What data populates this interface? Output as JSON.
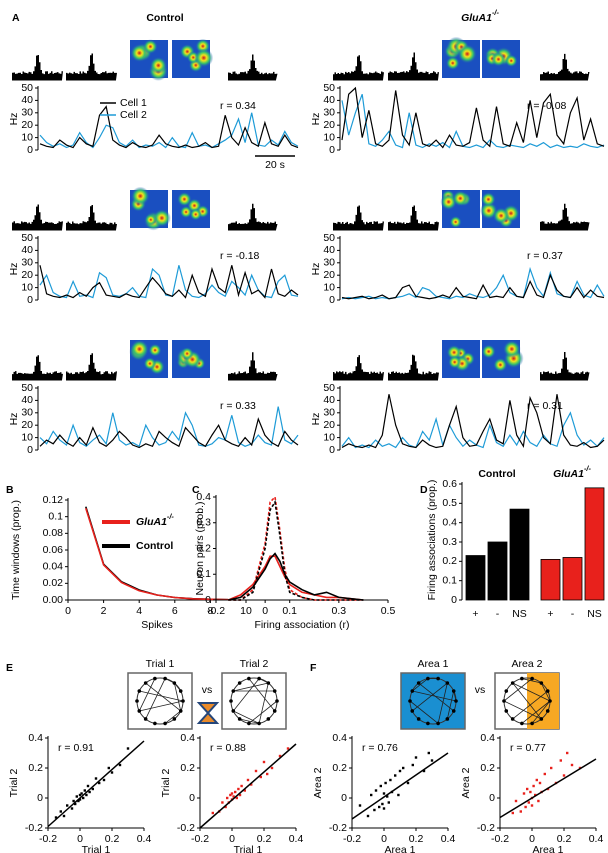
{
  "figure": {
    "panel_labels": [
      "A",
      "B",
      "C",
      "D",
      "E",
      "F"
    ],
    "column_headers": [
      {
        "text": "Control"
      },
      {
        "text": "GluA1",
        "sup": "-/-"
      }
    ],
    "comparison_e": {
      "left": "Trial 1",
      "vs": "vs",
      "right": "Trial 2"
    },
    "comparison_f": {
      "left": "Area 1",
      "vs": "vs",
      "right": "Area 2"
    }
  },
  "chart_data": [
    {
      "type": "trace",
      "ylabel": "Hz",
      "ylim": [
        0,
        50
      ],
      "yticks": [
        0,
        10,
        20,
        30,
        40,
        50
      ],
      "annotation": "r = 0.34",
      "scale_bar": "20 s",
      "series": [
        {
          "name": "Cell 1",
          "color": "#000000",
          "values": [
            5,
            3,
            2,
            8,
            4,
            2,
            10,
            5,
            3,
            28,
            35,
            8,
            4,
            2,
            6,
            3,
            2,
            4,
            12,
            5,
            3,
            2,
            4,
            2,
            3,
            6,
            2,
            3,
            28,
            10,
            4,
            18,
            6,
            3,
            22,
            5,
            3,
            12,
            4,
            2
          ]
        },
        {
          "name": "Cell 2",
          "color": "#1e9bd7",
          "values": [
            12,
            6,
            3,
            5,
            2,
            4,
            14,
            6,
            2,
            10,
            20,
            18,
            6,
            3,
            8,
            2,
            4,
            3,
            6,
            2,
            10,
            3,
            2,
            14,
            3,
            4,
            2,
            5,
            8,
            12,
            25,
            6,
            30,
            4,
            3,
            8,
            4,
            15,
            6,
            3
          ]
        }
      ]
    },
    {
      "type": "trace",
      "ylabel": "Hz",
      "ylim": [
        0,
        50
      ],
      "yticks": [
        0,
        10,
        20,
        30,
        40,
        50
      ],
      "annotation": "r = -0.08",
      "series": [
        {
          "color": "#000000",
          "values": [
            8,
            45,
            50,
            10,
            32,
            5,
            3,
            8,
            48,
            12,
            4,
            30,
            5,
            3,
            8,
            2,
            12,
            4,
            3,
            6,
            34,
            8,
            3,
            35,
            5,
            3,
            22,
            6,
            40,
            10,
            38,
            45,
            12,
            5,
            30,
            42,
            8,
            25,
            5,
            3
          ]
        },
        {
          "color": "#1e9bd7",
          "values": [
            40,
            12,
            30,
            45,
            5,
            3,
            8,
            15,
            4,
            2,
            30,
            4,
            2,
            5,
            3,
            6,
            2,
            15,
            3,
            2,
            4,
            2,
            8,
            3,
            2,
            4,
            3,
            2,
            5,
            3,
            6,
            2,
            4,
            2,
            3,
            2,
            5,
            3,
            2,
            4
          ]
        }
      ]
    },
    {
      "type": "trace",
      "ylabel": "Hz",
      "ylim": [
        0,
        50
      ],
      "yticks": [
        0,
        10,
        20,
        30,
        40,
        50
      ],
      "annotation": "r = -0.18",
      "series": [
        {
          "color": "#000000",
          "values": [
            28,
            5,
            3,
            2,
            4,
            2,
            6,
            3,
            10,
            14,
            4,
            3,
            2,
            5,
            3,
            2,
            10,
            18,
            12,
            5,
            3,
            8,
            2,
            20,
            6,
            3,
            25,
            10,
            6,
            28,
            4,
            22,
            5,
            8,
            2,
            25,
            5,
            3,
            8,
            4
          ]
        },
        {
          "color": "#1e9bd7",
          "values": [
            12,
            20,
            6,
            3,
            2,
            15,
            3,
            4,
            2,
            22,
            18,
            4,
            3,
            5,
            10,
            3,
            2,
            25,
            20,
            4,
            3,
            28,
            8,
            3,
            2,
            5,
            12,
            6,
            3,
            15,
            10,
            4,
            20,
            8,
            3,
            2,
            15,
            20,
            4,
            3
          ]
        }
      ]
    },
    {
      "type": "trace",
      "ylabel": "Hz",
      "ylim": [
        0,
        50
      ],
      "yticks": [
        0,
        10,
        20,
        30,
        40,
        50
      ],
      "annotation": "r = 0.37",
      "series": [
        {
          "color": "#000000",
          "values": [
            2,
            1,
            2,
            3,
            1,
            2,
            4,
            1,
            2,
            10,
            12,
            3,
            2,
            1,
            2,
            4,
            2,
            10,
            3,
            2,
            1,
            12,
            2,
            3,
            2,
            10,
            3,
            2,
            15,
            4,
            2,
            20,
            8,
            3,
            2,
            10,
            2,
            8,
            3,
            2
          ]
        },
        {
          "color": "#1e9bd7",
          "values": [
            1,
            2,
            1,
            2,
            3,
            1,
            2,
            1,
            2,
            3,
            5,
            2,
            10,
            8,
            3,
            2,
            1,
            3,
            2,
            5,
            3,
            2,
            4,
            10,
            20,
            6,
            3,
            2,
            25,
            10,
            3,
            22,
            5,
            3,
            2,
            15,
            4,
            2,
            12,
            3
          ]
        }
      ]
    },
    {
      "type": "trace",
      "ylabel": "Hz",
      "ylim": [
        0,
        50
      ],
      "yticks": [
        0,
        10,
        20,
        30,
        40,
        50
      ],
      "annotation": "r = 0.33",
      "series": [
        {
          "color": "#000000",
          "values": [
            3,
            8,
            5,
            12,
            6,
            3,
            10,
            4,
            18,
            6,
            3,
            8,
            15,
            10,
            4,
            2,
            5,
            3,
            15,
            10,
            6,
            3,
            18,
            12,
            6,
            3,
            12,
            20,
            8,
            5,
            3,
            10,
            4,
            25,
            12,
            6,
            3,
            15,
            8,
            4
          ]
        },
        {
          "color": "#1e9bd7",
          "values": [
            10,
            5,
            15,
            8,
            4,
            20,
            6,
            3,
            8,
            12,
            5,
            30,
            8,
            4,
            6,
            3,
            20,
            10,
            4,
            6,
            15,
            8,
            30,
            20,
            4,
            3,
            5,
            10,
            8,
            28,
            6,
            3,
            5,
            12,
            6,
            4,
            35,
            8,
            5,
            12
          ]
        }
      ]
    },
    {
      "type": "trace",
      "ylabel": "Hz",
      "ylim": [
        0,
        50
      ],
      "yticks": [
        0,
        10,
        20,
        30,
        40,
        50
      ],
      "annotation": "r = 0.31",
      "series": [
        {
          "color": "#000000",
          "values": [
            2,
            5,
            3,
            2,
            4,
            2,
            12,
            45,
            20,
            5,
            3,
            2,
            8,
            4,
            2,
            3,
            20,
            35,
            10,
            3,
            4,
            15,
            25,
            8,
            5,
            40,
            12,
            3,
            42,
            30,
            10,
            5,
            45,
            12,
            4,
            3,
            6,
            2,
            3,
            8
          ]
        },
        {
          "color": "#1e9bd7",
          "values": [
            3,
            10,
            2,
            4,
            2,
            8,
            3,
            5,
            2,
            10,
            4,
            2,
            15,
            8,
            25,
            4,
            20,
            10,
            3,
            8,
            4,
            2,
            20,
            6,
            3,
            12,
            4,
            15,
            6,
            3,
            12,
            5,
            3,
            20,
            30,
            12,
            4,
            8,
            3,
            10
          ]
        }
      ]
    },
    {
      "type": "line",
      "xlabel": "Spikes",
      "ylabel": "Time windows (prop.)",
      "xlim": [
        0,
        10
      ],
      "xticks": [
        0,
        2,
        4,
        6,
        8,
        10
      ],
      "ylim": [
        0,
        0.12
      ],
      "yticks": [
        {
          "value": 0,
          "label": "0.00"
        },
        0.02,
        0.04,
        0.06,
        0.08,
        0.1,
        0.12
      ],
      "x": [
        1,
        2,
        3,
        4,
        5,
        6,
        7,
        8,
        9
      ],
      "series": [
        {
          "name": "GluA1",
          "name_sup": "-/-",
          "color": "#e8211c",
          "values": [
            0.11,
            0.042,
            0.021,
            0.011,
            0.006,
            0.003,
            0.0015,
            0.0008,
            0.0004
          ]
        },
        {
          "name": "Control",
          "color": "#000000",
          "values": [
            0.112,
            0.043,
            0.022,
            0.012,
            0.006,
            0.003,
            0.0016,
            0.0008,
            0.0004
          ]
        }
      ]
    },
    {
      "type": "line",
      "xlabel": "Firing association (r)",
      "ylabel": "Neuron pairs (prob.)",
      "xlim": [
        -0.2,
        0.5
      ],
      "xticks": [
        -0.2,
        0,
        0.1,
        0.3,
        0.5
      ],
      "ylim": [
        0,
        0.4
      ],
      "yticks": [
        0,
        0.1,
        0.2,
        0.3,
        0.4
      ],
      "x": [
        -0.15,
        -0.1,
        -0.05,
        0,
        0.02,
        0.04,
        0.06,
        0.08,
        0.1,
        0.15,
        0.2,
        0.25,
        0.3,
        0.4
      ],
      "series": [
        {
          "color": "#000000",
          "dashed": false,
          "values": [
            0,
            0.01,
            0.05,
            0.12,
            0.16,
            0.18,
            0.15,
            0.1,
            0.07,
            0.04,
            0.02,
            0.03,
            0.01,
            0
          ]
        },
        {
          "color": "#000000",
          "dashed": true,
          "values": [
            0,
            0,
            0.03,
            0.2,
            0.35,
            0.38,
            0.25,
            0.1,
            0.03,
            0.01,
            0,
            0,
            0,
            0
          ]
        },
        {
          "color": "#e8211c",
          "dashed": false,
          "values": [
            0,
            0.02,
            0.06,
            0.13,
            0.17,
            0.17,
            0.13,
            0.09,
            0.06,
            0.03,
            0.02,
            0.01,
            0.01,
            0
          ]
        },
        {
          "color": "#e8211c",
          "dashed": true,
          "values": [
            0,
            0,
            0.04,
            0.22,
            0.38,
            0.4,
            0.27,
            0.12,
            0.04,
            0.01,
            0,
            0,
            0,
            0
          ]
        }
      ]
    },
    {
      "type": "bar",
      "ylabel": "Firing associations (prop.)",
      "ylim": [
        0,
        0.6
      ],
      "yticks": [
        0,
        0.1,
        0.2,
        0.3,
        0.4,
        0.5,
        0.6
      ],
      "categories": [
        "+",
        "-",
        "NS"
      ],
      "series": [
        {
          "name": "Control",
          "color": "#000000",
          "values": [
            0.23,
            0.3,
            0.47
          ]
        },
        {
          "name": "GluA1",
          "name_sup": "-/-",
          "color": "#e8211c",
          "values": [
            0.21,
            0.22,
            0.58
          ]
        }
      ]
    },
    {
      "type": "scatter",
      "xlabel": "Trial 1",
      "ylabel": "Trial 2",
      "annotation": "r = 0.91",
      "color": "#000000",
      "xlim": [
        -0.2,
        0.4
      ],
      "xticks": [
        -0.2,
        0,
        0.2,
        0.4
      ],
      "ylim": [
        -0.2,
        0.4
      ],
      "yticks": [
        -0.2,
        0,
        0.2,
        0.4
      ],
      "x": [
        -0.15,
        -0.1,
        -0.08,
        -0.05,
        -0.04,
        -0.03,
        -0.02,
        -0.01,
        0,
        0,
        0.01,
        0.02,
        0.03,
        0.04,
        0.05,
        0.06,
        0.08,
        0.1,
        0.12,
        0.15,
        0.18,
        0.2,
        0.25,
        0.3,
        -0.12
      ],
      "y": [
        -0.13,
        -0.12,
        -0.05,
        -0.07,
        -0.02,
        -0.04,
        0.01,
        -0.02,
        0.02,
        -0.01,
        0.03,
        0,
        0.05,
        0.02,
        0.08,
        0.04,
        0.06,
        0.13,
        0.1,
        0.12,
        0.2,
        0.17,
        0.22,
        0.33,
        -0.09
      ],
      "fit": {
        "x": [
          -0.2,
          0.4
        ],
        "y": [
          -0.19,
          0.38
        ]
      }
    },
    {
      "type": "scatter",
      "xlabel": "Trial 1",
      "ylabel": "Trial 2",
      "annotation": "r = 0.88",
      "color": "#e8211c",
      "xlim": [
        -0.2,
        0.4
      ],
      "xticks": [
        -0.2,
        0,
        0.2,
        0.4
      ],
      "ylim": [
        -0.2,
        0.4
      ],
      "yticks": [
        -0.2,
        0,
        0.2,
        0.4
      ],
      "x": [
        -0.12,
        -0.08,
        -0.06,
        -0.04,
        -0.03,
        -0.02,
        -0.01,
        0,
        0,
        0.01,
        0.02,
        0.03,
        0.04,
        0.05,
        0.06,
        0.08,
        0.1,
        0.12,
        0.15,
        0.18,
        0.2,
        0.22,
        0.25,
        0.3,
        0.35
      ],
      "y": [
        -0.1,
        -0.09,
        -0.03,
        -0.06,
        0,
        -0.03,
        0.02,
        -0.01,
        0.03,
        0.01,
        0.04,
        0,
        0.06,
        0.02,
        0.08,
        0.05,
        0.12,
        0.09,
        0.18,
        0.14,
        0.24,
        0.16,
        0.2,
        0.28,
        0.33
      ],
      "fit": {
        "x": [
          -0.2,
          0.4
        ],
        "y": [
          -0.2,
          0.36
        ]
      }
    },
    {
      "type": "scatter",
      "xlabel": "Area 1",
      "ylabel": "Area 2",
      "annotation": "r = 0.76",
      "color": "#000000",
      "xlim": [
        -0.2,
        0.4
      ],
      "xticks": [
        -0.2,
        0,
        0.2,
        0.4
      ],
      "ylim": [
        -0.2,
        0.4
      ],
      "yticks": [
        -0.2,
        0,
        0.2,
        0.4
      ],
      "x": [
        -0.15,
        -0.1,
        -0.08,
        -0.06,
        -0.05,
        -0.03,
        -0.02,
        -0.01,
        0,
        0,
        0.01,
        0.02,
        0.03,
        0.04,
        0.05,
        0.07,
        0.09,
        0.1,
        0.12,
        0.15,
        0.18,
        0.2,
        0.25,
        0.28,
        0.3
      ],
      "y": [
        -0.05,
        -0.12,
        0.02,
        -0.08,
        0.05,
        -0.06,
        0.08,
        -0.04,
        0.03,
        -0.07,
        0.1,
        0.01,
        -0.03,
        0.12,
        0.04,
        0.15,
        0.02,
        0.18,
        0.2,
        0.1,
        0.22,
        0.27,
        0.18,
        0.3,
        0.25
      ],
      "fit": {
        "x": [
          -0.2,
          0.4
        ],
        "y": [
          -0.14,
          0.3
        ]
      }
    },
    {
      "type": "scatter",
      "xlabel": "Area 1",
      "ylabel": "Area 2",
      "annotation": "r = 0.77",
      "color": "#e8211c",
      "xlim": [
        -0.2,
        0.4
      ],
      "xticks": [
        -0.2,
        0,
        0.2,
        0.4
      ],
      "ylim": [
        -0.2,
        0.4
      ],
      "yticks": [
        -0.2,
        0,
        0.2,
        0.4
      ],
      "x": [
        -0.12,
        -0.1,
        -0.07,
        -0.05,
        -0.04,
        -0.03,
        -0.02,
        -0.01,
        0,
        0,
        0.01,
        0.02,
        0.03,
        0.04,
        0.05,
        0.06,
        0.08,
        0.1,
        0.12,
        0.15,
        0.18,
        0.2,
        0.22,
        0.25,
        0.3
      ],
      "y": [
        -0.1,
        -0.02,
        -0.09,
        0.03,
        -0.06,
        0.06,
        -0.03,
        0.04,
        0,
        -0.05,
        0.08,
        0.02,
        0.12,
        -0.02,
        0.1,
        0.04,
        0.16,
        0.06,
        0.2,
        0.1,
        0.25,
        0.15,
        0.3,
        0.22,
        0.2
      ],
      "fit": {
        "x": [
          -0.2,
          0.4
        ],
        "y": [
          -0.13,
          0.26
        ]
      }
    }
  ]
}
